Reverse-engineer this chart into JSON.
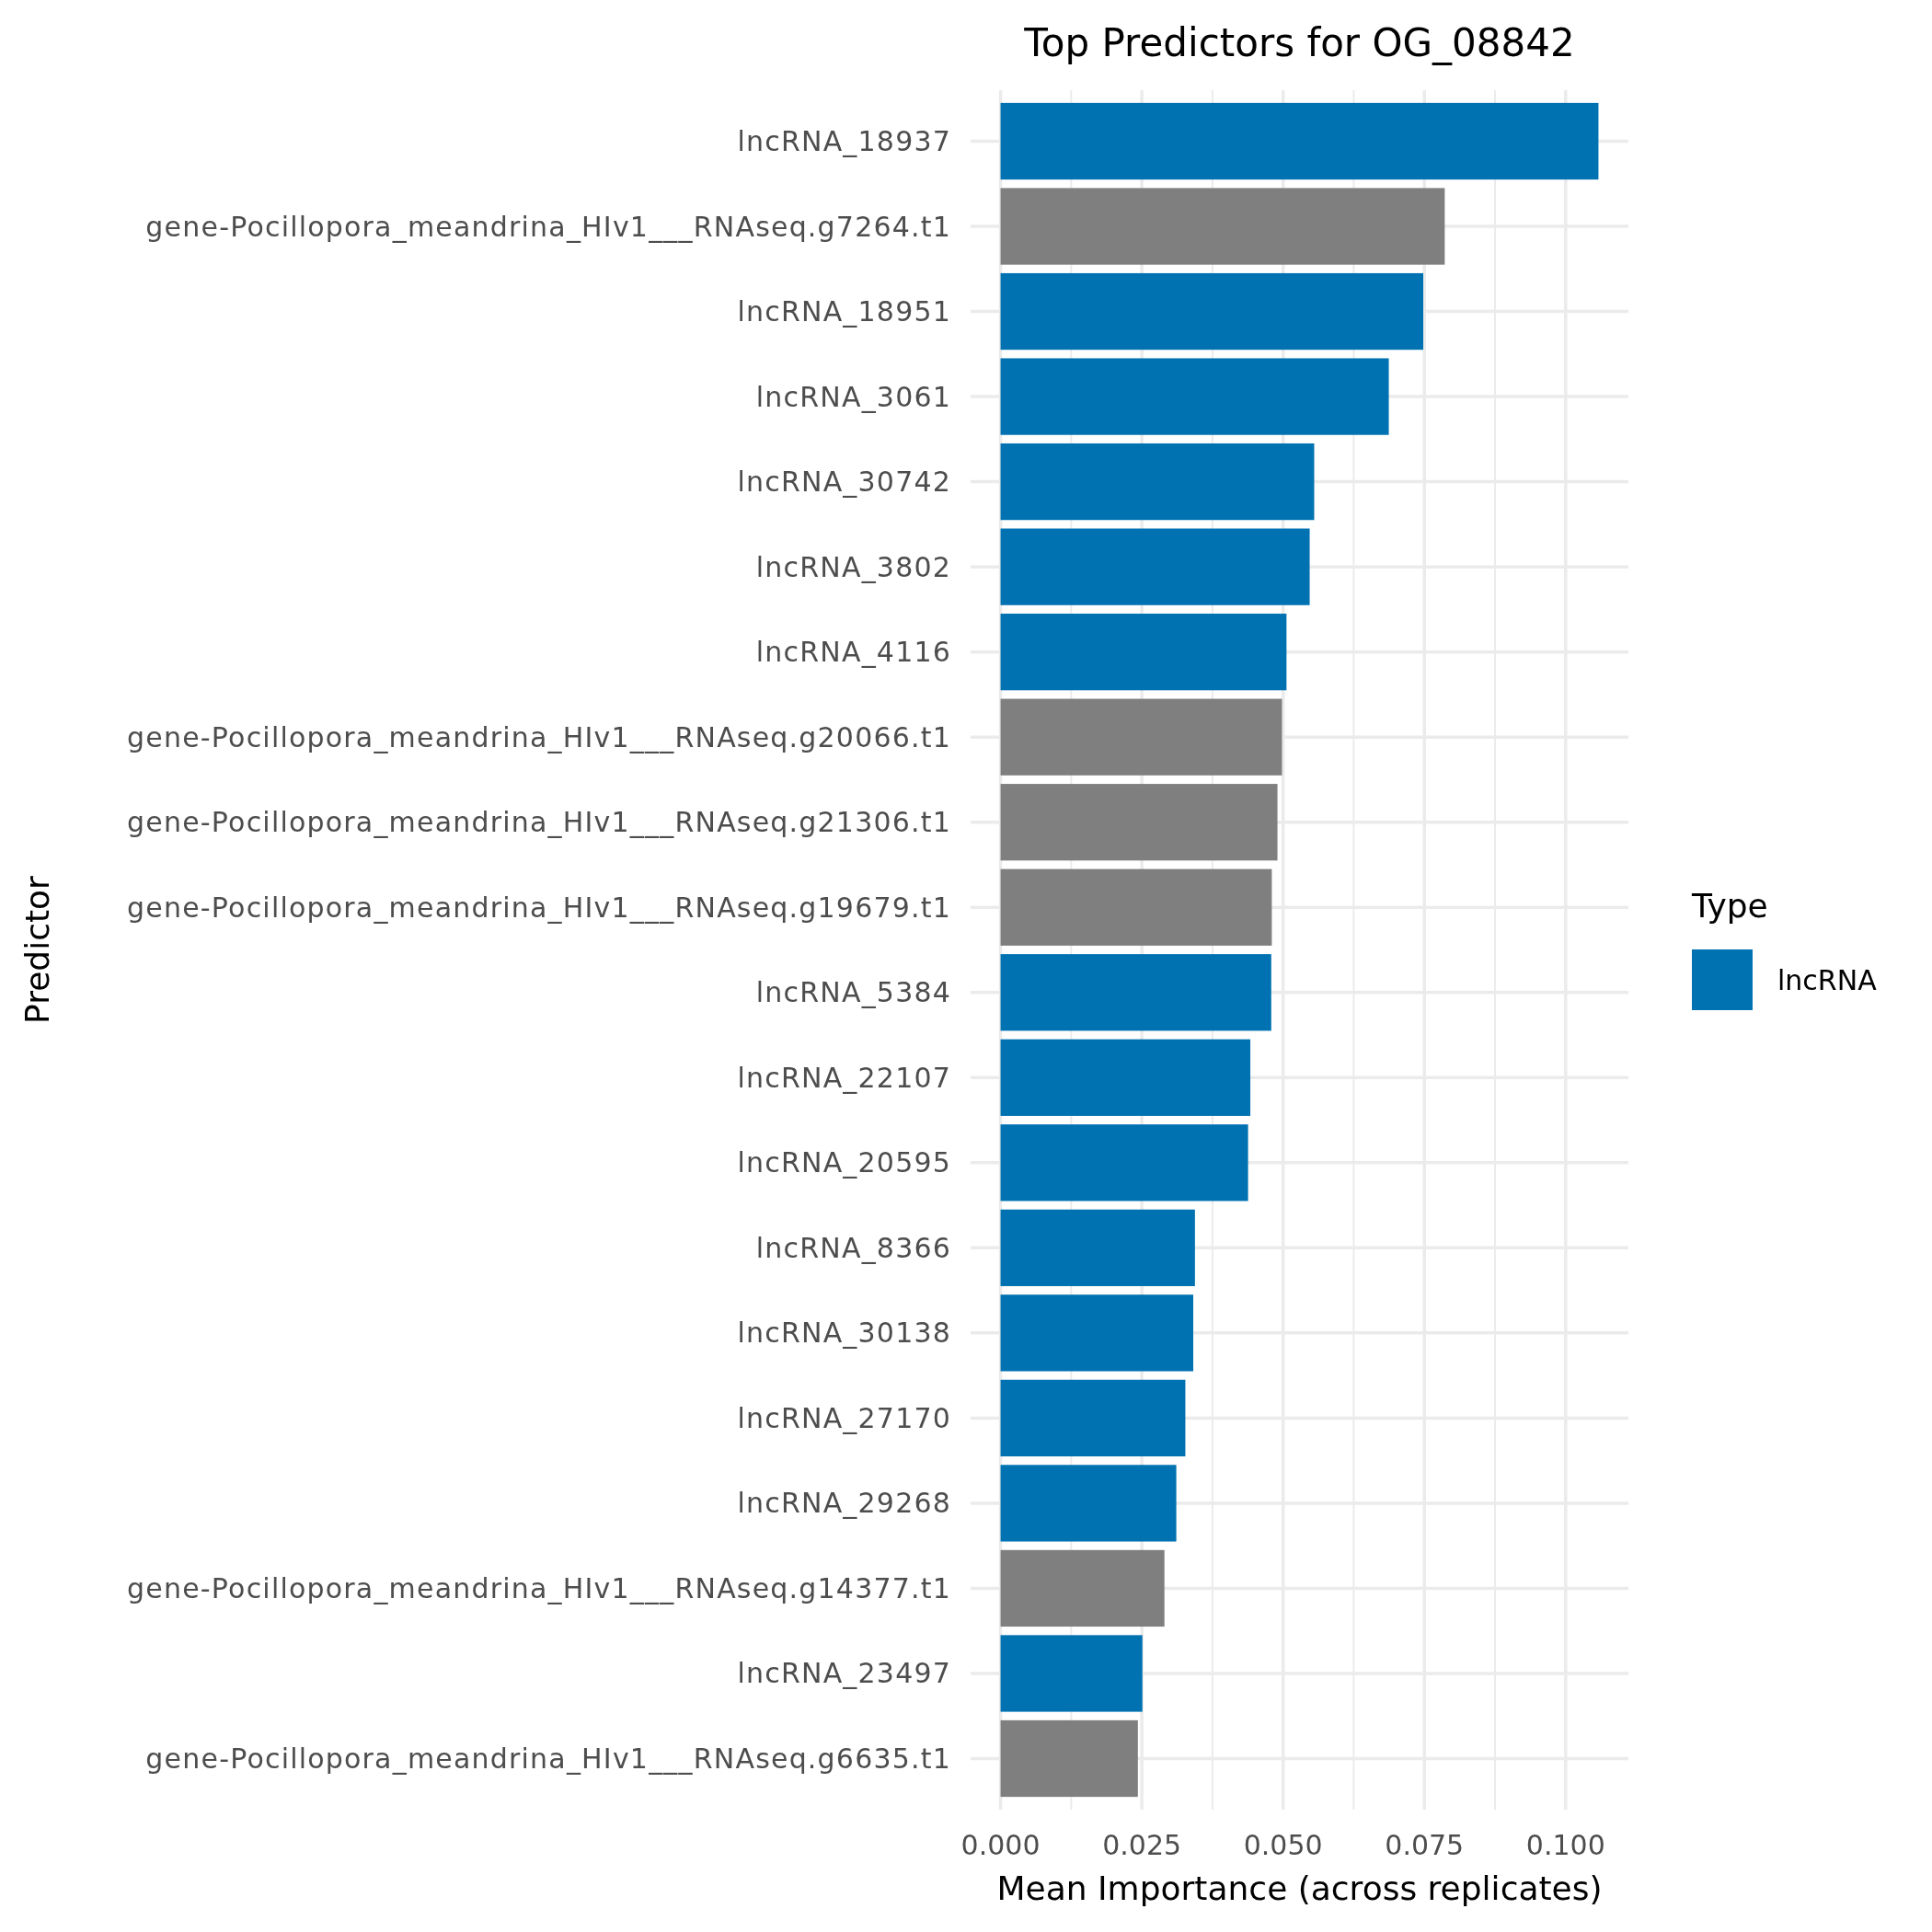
{
  "chart_data": {
    "type": "bar",
    "orientation": "horizontal",
    "title": "Top Predictors for OG_08842",
    "xlabel": "Mean Importance (across replicates)",
    "ylabel": "Predictor",
    "legend_title": "Type",
    "legend": "right",
    "grid": true,
    "categories": [
      "lncRNA_18937",
      "gene-Pocillopora_meandrina_HIv1___RNAseq.g7264.t1",
      "lncRNA_18951",
      "lncRNA_3061",
      "lncRNA_30742",
      "lncRNA_3802",
      "lncRNA_4116",
      "gene-Pocillopora_meandrina_HIv1___RNAseq.g20066.t1",
      "gene-Pocillopora_meandrina_HIv1___RNAseq.g21306.t1",
      "gene-Pocillopora_meandrina_HIv1___RNAseq.g19679.t1",
      "lncRNA_5384",
      "lncRNA_22107",
      "lncRNA_20595",
      "lncRNA_8366",
      "lncRNA_30138",
      "lncRNA_27170",
      "lncRNA_29268",
      "gene-Pocillopora_meandrina_HIv1___RNAseq.g14377.t1",
      "lncRNA_23497",
      "gene-Pocillopora_meandrina_HIv1___RNAseq.g6635.t1"
    ],
    "series": [
      {
        "name": "lncRNA",
        "color": "#0072b2",
        "values": [
          0.1058,
          null,
          0.0748,
          0.0687,
          0.0555,
          0.0547,
          0.0506,
          null,
          null,
          null,
          0.0479,
          0.0442,
          0.0438,
          0.0344,
          0.0341,
          0.0327,
          0.0311,
          null,
          0.0251,
          null
        ]
      },
      {
        "color": "#7f7f7f",
        "values": [
          null,
          0.0786,
          null,
          null,
          null,
          null,
          null,
          0.0498,
          0.049,
          0.048,
          null,
          null,
          null,
          null,
          null,
          null,
          null,
          0.029,
          null,
          0.0243
        ]
      }
    ],
    "xlim": [
      -0.0053,
      0.1111
    ],
    "xticks": [
      {
        "value": 0,
        "label": "0.000"
      },
      {
        "value": 0.0125,
        "label": null
      },
      {
        "value": 0.025,
        "label": "0.025"
      },
      {
        "value": 0.0375,
        "label": null
      },
      {
        "value": 0.05,
        "label": "0.050"
      },
      {
        "value": 0.0625,
        "label": null
      },
      {
        "value": 0.075,
        "label": "0.075"
      },
      {
        "value": 0.0875,
        "label": null
      },
      {
        "value": 0.1,
        "label": "0.100"
      }
    ]
  }
}
